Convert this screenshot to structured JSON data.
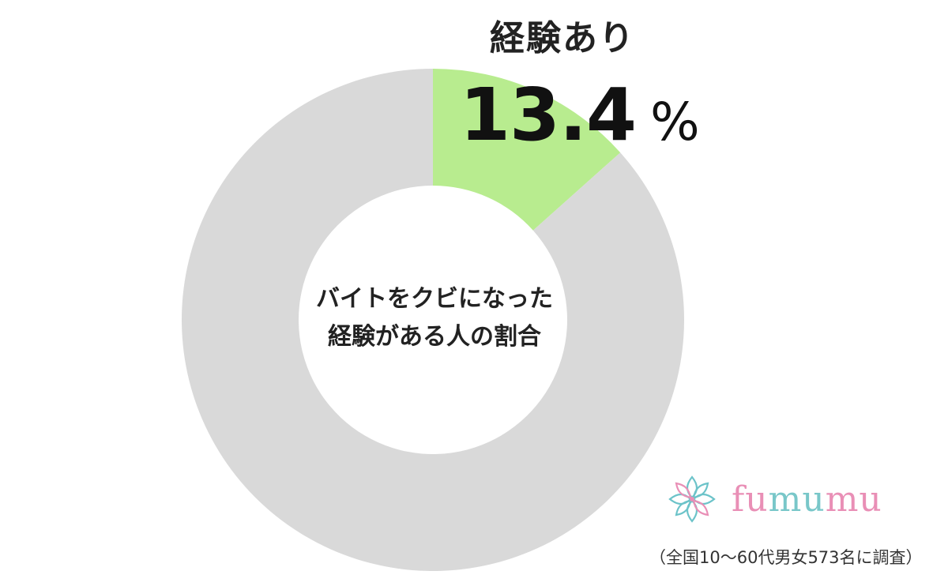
{
  "chart_data": {
    "type": "pie",
    "variant": "donut",
    "title": "バイトをクビになった\n経験がある人の割合",
    "slices": [
      {
        "label": "経験あり",
        "value": 13.4,
        "color": "#b8ec8f"
      },
      {
        "label": "",
        "value": 86.6,
        "color": "#d9d9d9"
      }
    ],
    "unit": "%",
    "start": "12 o'clock",
    "direction": "clockwise",
    "highlight": {
      "label": "経験あり",
      "value": "13.4",
      "unit": "%"
    }
  },
  "center_text": {
    "line1": "バイトをクビになった",
    "line2": "経験がある人の割合"
  },
  "logo": {
    "text_parts": [
      {
        "text": "fu",
        "color": "#e98fb6"
      },
      {
        "text": "mu",
        "color": "#79c7c9"
      },
      {
        "text": "mu",
        "color": "#e98fb6"
      }
    ]
  },
  "footnote": "（全国10～60代男女573名に調査）"
}
